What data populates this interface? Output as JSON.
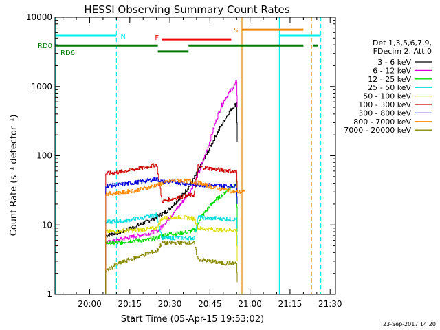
{
  "chart_data": {
    "type": "line",
    "title": "HESSI Observing Summary Count Rates",
    "xlabel": "Start Time (05-Apr-15 19:53:02)",
    "ylabel": "Count Rate (s⁻¹ detector⁻¹)",
    "yscale": "log",
    "xlim": [
      -6,
      99
    ],
    "ylim": [
      1,
      10000
    ],
    "x_unit": "minutes after 19:53:02 start time",
    "x_ticks": [
      {
        "value": 7,
        "label": "20:00"
      },
      {
        "value": 22,
        "label": "20:15"
      },
      {
        "value": 37,
        "label": "20:30"
      },
      {
        "value": 52,
        "label": "20:45"
      },
      {
        "value": 67,
        "label": "21:00"
      },
      {
        "value": 82,
        "label": "21:15"
      },
      {
        "value": 97,
        "label": "21:30"
      }
    ],
    "y_ticks": [
      {
        "value": 1,
        "label": "1"
      },
      {
        "value": 10,
        "label": "10"
      },
      {
        "value": 100,
        "label": "100"
      },
      {
        "value": 1000,
        "label": "1000"
      },
      {
        "value": 10000,
        "label": "10000"
      }
    ],
    "legend": {
      "position": "right",
      "header": [
        "Det 1,3,5,6,7,9,",
        "FDecim 2, Att 0"
      ]
    },
    "series": [
      {
        "name": "3 - 6 keV",
        "color": "#000000",
        "x": [
          13,
          19,
          24,
          28,
          32,
          36,
          39,
          42,
          45,
          48,
          51,
          54,
          57,
          59,
          61.5,
          62,
          62.2
        ],
        "y": [
          7,
          8,
          9.5,
          11,
          13,
          16,
          21,
          28,
          40,
          65,
          110,
          190,
          310,
          420,
          550,
          600,
          160
        ]
      },
      {
        "name": "6 - 12 keV",
        "color": "#e000e0",
        "x": [
          13,
          17,
          21,
          25,
          29,
          33,
          37,
          41,
          45,
          48,
          51,
          54,
          56,
          58,
          60,
          61.5,
          62,
          62.2
        ],
        "y": [
          5.5,
          6,
          6.5,
          7,
          7.5,
          8.5,
          13,
          20,
          33,
          60,
          125,
          300,
          500,
          700,
          900,
          1100,
          1200,
          500
        ]
      },
      {
        "name": "12 - 25 keV",
        "color": "#00dd00",
        "x": [
          13,
          18,
          23,
          28,
          32,
          34,
          37,
          40,
          44,
          47,
          48,
          51,
          54,
          57,
          60,
          62,
          62.2
        ],
        "y": [
          5.5,
          5.5,
          6,
          6,
          6.5,
          7,
          7.5,
          7.5,
          8,
          8.5,
          12,
          17,
          23,
          28,
          35,
          42,
          8
        ]
      },
      {
        "name": "25 - 50 keV",
        "color": "#00dddd",
        "x": [
          13,
          20,
          26,
          32,
          34,
          40,
          46,
          47.5,
          50,
          55,
          60,
          62,
          62.2
        ],
        "y": [
          11,
          11.5,
          12.5,
          14,
          6.5,
          6.5,
          6.5,
          13,
          12.5,
          12.5,
          12,
          12,
          4
        ]
      },
      {
        "name": "50 - 100 keV",
        "color": "#dddd00",
        "x": [
          13,
          20,
          26,
          32,
          34,
          40,
          46,
          47.5,
          55,
          62,
          62.2
        ],
        "y": [
          8,
          8.2,
          8.5,
          9,
          12.5,
          13,
          12.5,
          9,
          8.5,
          8.5,
          3
        ]
      },
      {
        "name": "100 - 300 keV",
        "color": "#cc0000",
        "x": [
          13,
          18,
          23,
          28,
          32,
          34,
          38,
          42,
          46,
          47.5,
          52,
          57,
          62,
          62.2
        ],
        "y": [
          55,
          58,
          63,
          68,
          75,
          22,
          24,
          26,
          27,
          70,
          65,
          62,
          58,
          30
        ]
      },
      {
        "name": "300 - 800 keV",
        "color": "#0000dd",
        "x": [
          13,
          20,
          26,
          32,
          34,
          38,
          42,
          46,
          47.5,
          55,
          62,
          62.2
        ],
        "y": [
          37,
          39,
          42,
          46,
          42,
          42,
          40,
          38,
          38,
          37,
          36,
          20
        ]
      },
      {
        "name": "800 - 7000 keV",
        "color": "#ff8800",
        "x": [
          13,
          18,
          23,
          28,
          32,
          36,
          40,
          44,
          48,
          52,
          56,
          60,
          62,
          63,
          64,
          65
        ],
        "y": [
          28,
          29,
          31,
          34,
          38,
          42,
          44,
          43,
          40,
          36,
          33,
          31,
          30,
          30,
          30,
          30
        ]
      },
      {
        "name": "7000 - 20000 keV",
        "color": "#888800",
        "x": [
          13,
          18,
          22,
          26,
          30,
          32,
          34,
          38,
          42,
          46,
          47.5,
          52,
          57,
          62,
          62.2
        ],
        "y": [
          2.2,
          2.8,
          3.2,
          3.6,
          4,
          4.2,
          5.5,
          5.5,
          5.5,
          5.5,
          3.2,
          3,
          2.8,
          2.8,
          1.5
        ]
      }
    ],
    "bars": [
      {
        "label": "N",
        "color": "#00eeee",
        "level": 5400,
        "segments": [
          [
            -6,
            17
          ],
          [
            78,
            93.5
          ]
        ]
      },
      {
        "label": "RD0",
        "color": "#007700",
        "level": 3900,
        "segments": [
          [
            -6,
            32.5
          ],
          [
            44,
            87
          ],
          [
            90.5,
            92.5
          ]
        ]
      },
      {
        "label": "RD6",
        "color": "#007700",
        "level": 3200,
        "segments": [
          [
            32.5,
            44
          ]
        ]
      },
      {
        "label": "F",
        "color": "#ee0000",
        "level": 4800,
        "segments": [
          [
            34,
            60
          ]
        ]
      },
      {
        "label": "S",
        "color": "#ee8800",
        "level": 6600,
        "segments": [
          [
            64,
            87
          ]
        ]
      }
    ],
    "vlines": [
      {
        "x": -5.7,
        "color": "#00eeee",
        "style": "solid"
      },
      {
        "x": 17,
        "color": "#00eeee",
        "style": "dashed"
      },
      {
        "x": 64,
        "color": "#dd8800",
        "style": "solid"
      },
      {
        "x": 78,
        "color": "#00eeee",
        "style": "solid"
      },
      {
        "x": 90,
        "color": "#dd8800",
        "style": "dashed"
      },
      {
        "x": 93.5,
        "color": "#00eeee",
        "style": "dashed"
      }
    ]
  },
  "footer": {
    "timestamp": "23-Sep-2017 14:20"
  }
}
